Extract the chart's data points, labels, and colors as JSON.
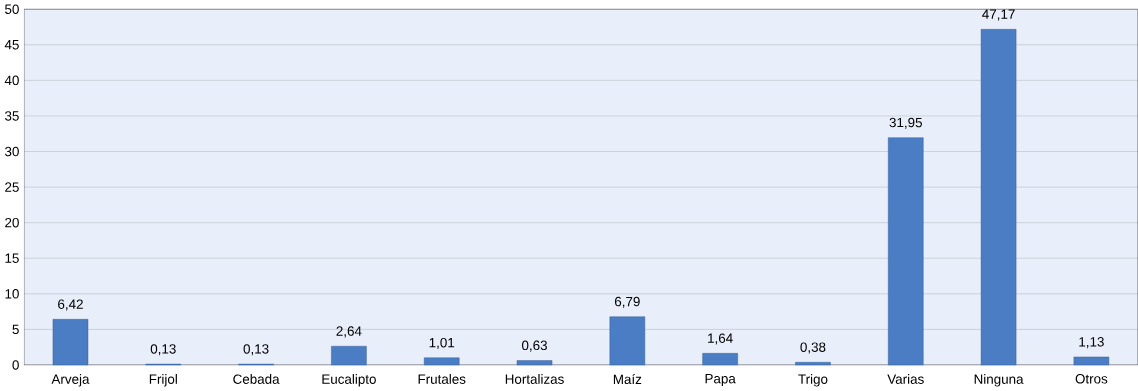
{
  "chart_data": {
    "type": "bar",
    "categories": [
      "Arveja",
      "Frijol",
      "Cebada",
      "Eucalipto",
      "Frutales",
      "Hortalizas",
      "Maíz",
      "Papa",
      "Trigo",
      "Varias",
      "Ninguna",
      "Otros"
    ],
    "values": [
      6.42,
      0.13,
      0.13,
      2.64,
      1.01,
      0.63,
      6.79,
      1.64,
      0.38,
      31.95,
      47.17,
      1.13
    ],
    "value_labels": [
      "6,42",
      "0,13",
      "0,13",
      "2,64",
      "1,01",
      "0,63",
      "6,79",
      "1,64",
      "0,38",
      "31,95",
      "47,17",
      "1,13"
    ],
    "color": "#4a7dc4",
    "ylim": [
      0,
      50
    ],
    "yticks": [
      0,
      5,
      10,
      15,
      20,
      25,
      30,
      35,
      40,
      45,
      50
    ],
    "grid": "y"
  }
}
